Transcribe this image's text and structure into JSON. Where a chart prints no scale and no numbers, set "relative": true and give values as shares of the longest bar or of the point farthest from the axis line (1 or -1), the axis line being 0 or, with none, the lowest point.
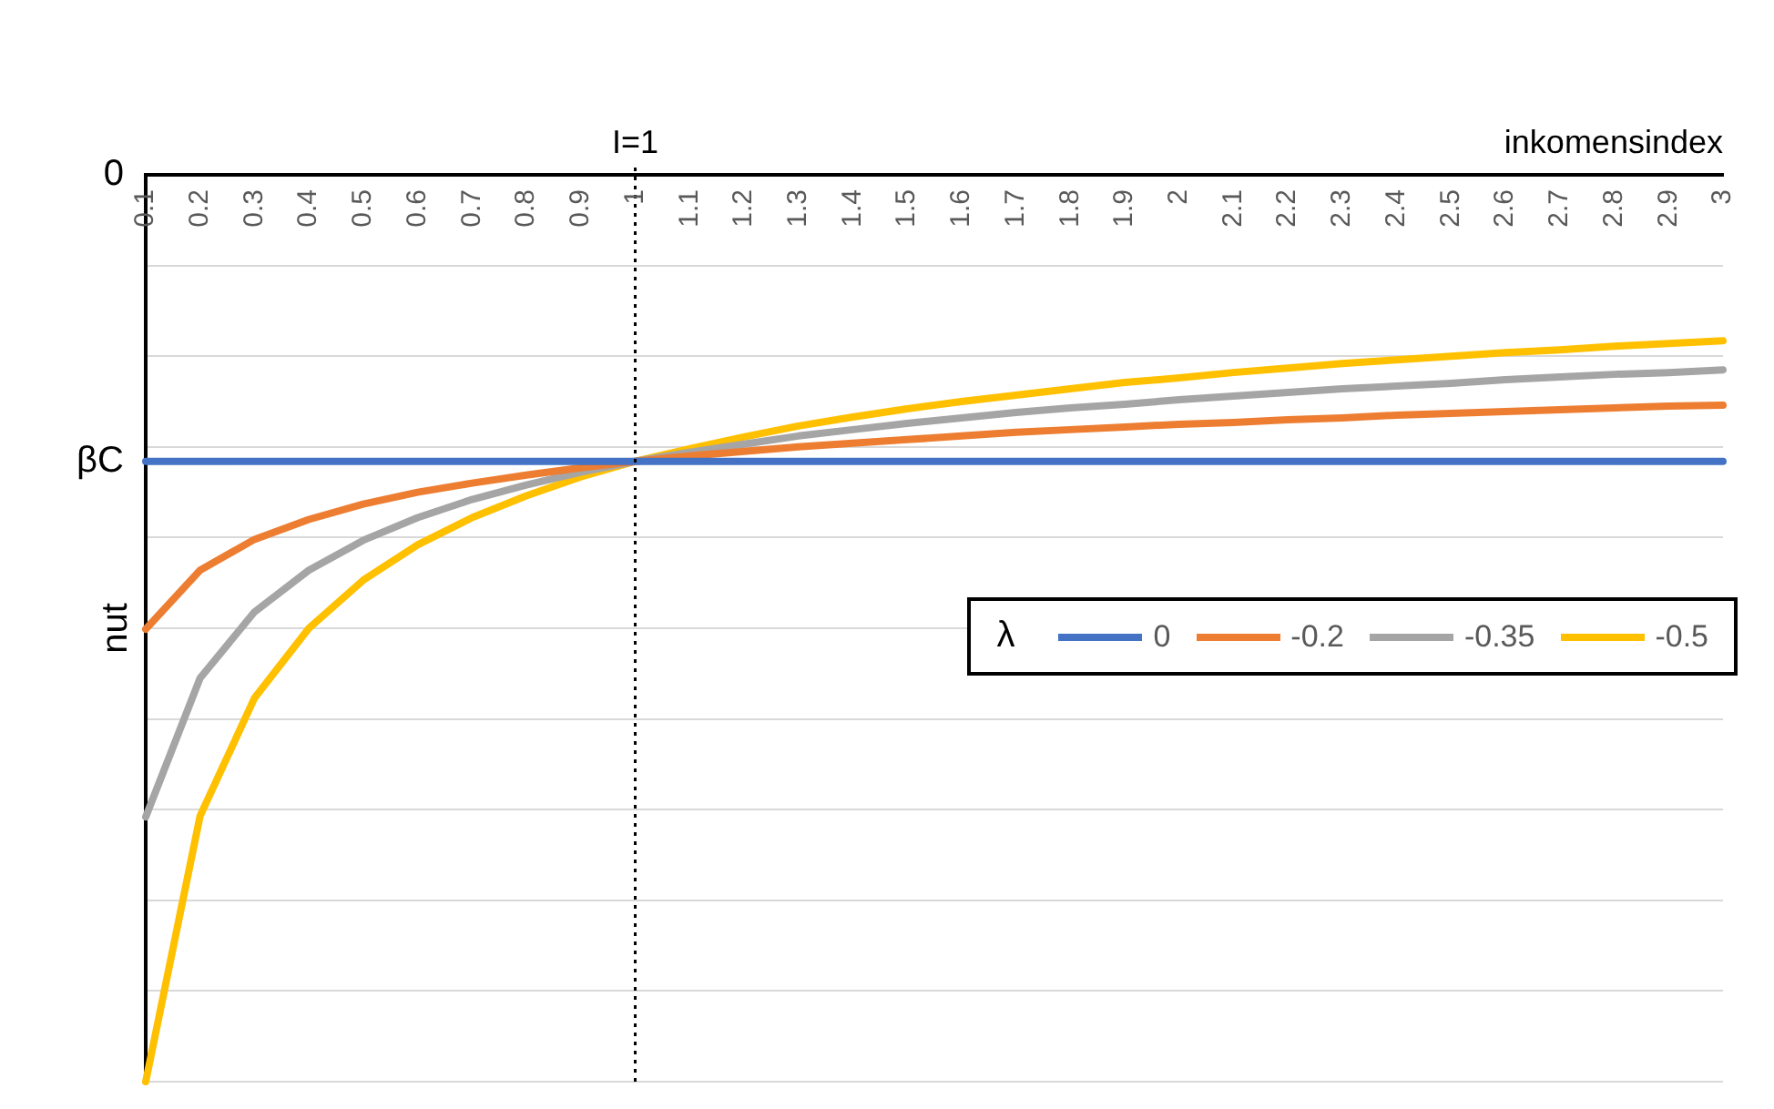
{
  "chart_data": {
    "type": "line",
    "relative": true,
    "xlabel": "inkomensindex",
    "ylabel": "nut",
    "legend_title": "λ",
    "legend": "right",
    "grid": "y",
    "marker": "none",
    "line_style": "solid",
    "categories": [
      "0.1",
      "0.2",
      "0.3",
      "0.4",
      "0.5",
      "0.6",
      "0.7",
      "0.8",
      "0.9",
      "1",
      "1.1",
      "1.2",
      "1.3",
      "1.4",
      "1.5",
      "1.6",
      "1.7",
      "1.8",
      "1.9",
      "2",
      "2.1",
      "2.2",
      "2.3",
      "2.4",
      "2.5",
      "2.6",
      "2.7",
      "2.8",
      "2.9",
      "3"
    ],
    "series": [
      {
        "name": "0",
        "color": "#4472c4",
        "values": [
          -0.316,
          -0.316,
          -0.316,
          -0.316,
          -0.316,
          -0.316,
          -0.316,
          -0.316,
          -0.316,
          -0.316,
          -0.316,
          -0.316,
          -0.316,
          -0.316,
          -0.316,
          -0.316,
          -0.316,
          -0.316,
          -0.316,
          -0.316,
          -0.316,
          -0.316,
          -0.316,
          -0.316,
          -0.316,
          -0.316,
          -0.316,
          -0.316,
          -0.316,
          -0.316
        ]
      },
      {
        "name": "-0.2",
        "color": "#ed7d31",
        "values": [
          -0.501,
          -0.436,
          -0.402,
          -0.38,
          -0.363,
          -0.35,
          -0.34,
          -0.331,
          -0.323,
          -0.316,
          -0.31,
          -0.305,
          -0.3,
          -0.296,
          -0.292,
          -0.288,
          -0.284,
          -0.281,
          -0.278,
          -0.275,
          -0.273,
          -0.27,
          -0.268,
          -0.265,
          -0.263,
          -0.261,
          -0.259,
          -0.257,
          -0.255,
          -0.254
        ]
      },
      {
        "name": "-0.35",
        "color": "#a5a5a5",
        "values": [
          -0.708,
          -0.555,
          -0.482,
          -0.436,
          -0.403,
          -0.378,
          -0.358,
          -0.342,
          -0.328,
          -0.316,
          -0.306,
          -0.297,
          -0.288,
          -0.281,
          -0.274,
          -0.268,
          -0.262,
          -0.257,
          -0.253,
          -0.248,
          -0.244,
          -0.24,
          -0.236,
          -0.233,
          -0.23,
          -0.226,
          -0.223,
          -0.22,
          -0.218,
          -0.215
        ]
      },
      {
        "name": "-0.5",
        "color": "#ffc000",
        "values": [
          -1,
          -0.707,
          -0.577,
          -0.5,
          -0.447,
          -0.408,
          -0.378,
          -0.354,
          -0.333,
          -0.316,
          -0.302,
          -0.289,
          -0.277,
          -0.267,
          -0.258,
          -0.25,
          -0.243,
          -0.236,
          -0.229,
          -0.224,
          -0.218,
          -0.213,
          -0.208,
          -0.204,
          -0.2,
          -0.196,
          -0.193,
          -0.189,
          -0.186,
          -0.183
        ]
      }
    ],
    "ref_lines": [
      {
        "axis": "x",
        "value": "1",
        "label": "I=1",
        "line_style": "dotted",
        "color": "#000000"
      }
    ],
    "annotations": [
      "0",
      "βC"
    ]
  }
}
